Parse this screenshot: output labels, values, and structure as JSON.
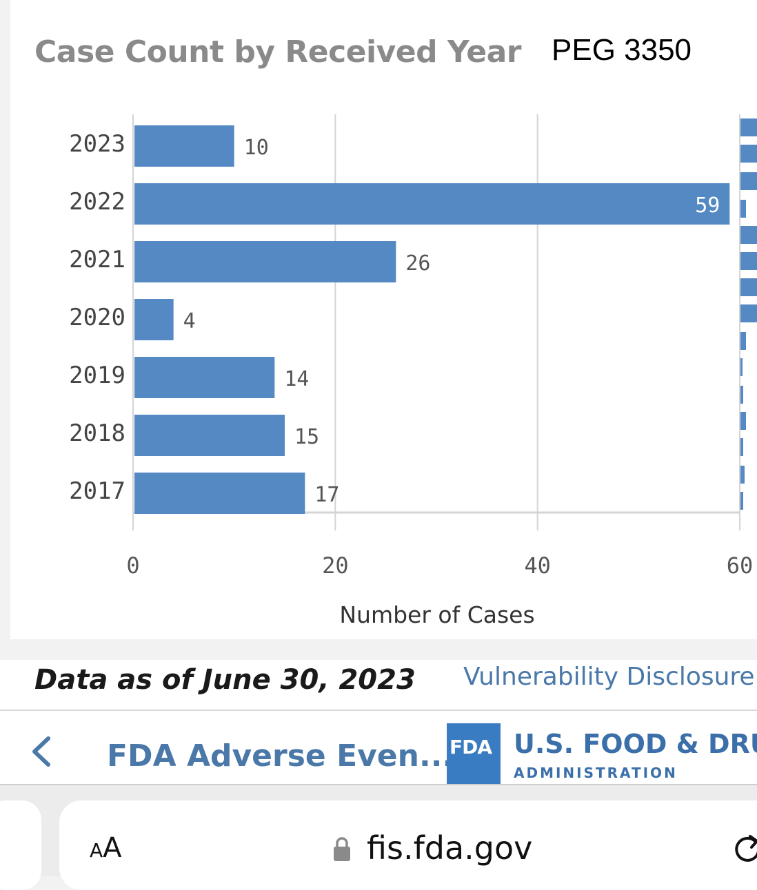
{
  "chart_data": {
    "type": "bar",
    "orientation": "horizontal",
    "title": "Case Count by Received Year",
    "categories": [
      "2023",
      "2022",
      "2021",
      "2020",
      "2019",
      "2018",
      "2017"
    ],
    "values": [
      10,
      59,
      26,
      4,
      14,
      15,
      17
    ],
    "xlabel": "Number of Cases",
    "ylabel": "",
    "xlim": [
      0,
      60
    ],
    "x_ticks": [
      "0",
      "20",
      "40",
      "60"
    ],
    "grid": "vertical",
    "data_labels": true,
    "bar_color": "#5589c4"
  },
  "annotation": {
    "text": "PEG 3350"
  },
  "footer": {
    "data_as_of": "Data as of June 30, 2023",
    "link_text": "Vulnerability Disclosure P"
  },
  "app_bar": {
    "title": "FDA Adverse Even...",
    "back_icon": "chevron-left-icon",
    "logo_text": "FDA",
    "agency_name": "U.S. FOOD & DRUG",
    "agency_sub": "ADMINISTRATION",
    "accent_color": "#4a78a8"
  },
  "browser": {
    "aa_label_small": "A",
    "aa_label_large": "A",
    "url": "fis.fda.gov",
    "lock_icon": "lock-icon",
    "reload_icon": "reload-icon"
  }
}
